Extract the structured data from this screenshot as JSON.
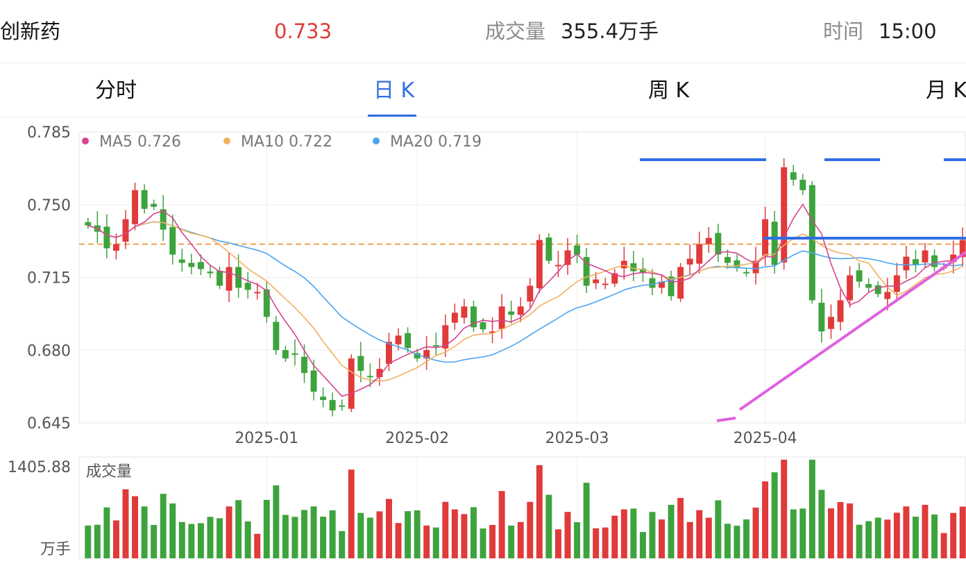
{
  "header": {
    "name": "创新药",
    "price": "0.733",
    "volume_label": "成交量",
    "volume_value": "355.4万手",
    "time_label": "时间",
    "time_value": "15:00"
  },
  "tabs": [
    "分时",
    "日 K",
    "周 K",
    "月 K"
  ],
  "active_tab": 1,
  "colors": {
    "up": "#e03a3a",
    "down": "#3da33d",
    "ma5": "#d6438f",
    "ma10": "#f0b060",
    "ma20": "#4aa3f0",
    "accent": "#2f6de6"
  },
  "chart_data": [
    {
      "type": "candlestick",
      "legend": [
        {
          "name": "MA5",
          "value": "0.726"
        },
        {
          "name": "MA10",
          "value": "0.722"
        },
        {
          "name": "MA20",
          "value": "0.719"
        }
      ],
      "y_ticks": [
        "0.785",
        "0.750",
        "0.715",
        "0.680",
        "0.645"
      ],
      "x_ticks": [
        "2025-01",
        "2025-02",
        "2025-03",
        "2025-04"
      ],
      "ylim": [
        0.645,
        0.785
      ],
      "reference_price": 0.731,
      "closes": [
        0.74,
        0.737,
        0.729,
        0.731,
        0.743,
        0.757,
        0.748,
        0.749,
        0.738,
        0.726,
        0.722,
        0.72,
        0.719,
        0.717,
        0.711,
        0.72,
        0.71,
        0.709,
        0.708,
        0.696,
        0.68,
        0.676,
        0.678,
        0.669,
        0.66,
        0.656,
        0.651,
        0.653,
        0.676,
        0.67,
        0.667,
        0.671,
        0.684,
        0.687,
        0.681,
        0.676,
        0.68,
        0.682,
        0.692,
        0.698,
        0.701,
        0.691,
        0.69,
        0.689,
        0.701,
        0.697,
        0.701,
        0.711,
        0.733,
        0.723,
        0.721,
        0.728,
        0.726,
        0.711,
        0.714,
        0.712,
        0.717,
        0.723,
        0.718,
        0.717,
        0.71,
        0.713,
        0.706,
        0.72,
        0.724,
        0.731,
        0.734,
        0.726,
        0.722,
        0.72,
        0.717,
        0.723,
        0.743,
        0.721,
        0.768,
        0.762,
        0.757,
        0.704,
        0.689,
        0.696,
        0.704,
        0.716,
        0.713,
        0.71,
        0.707,
        0.708,
        0.716,
        0.725,
        0.721,
        0.728,
        0.72,
        0.72,
        0.726,
        0.733
      ],
      "x_range": [
        "2024-12-05",
        "2025-04-30"
      ]
    },
    {
      "type": "bar",
      "title": "成交量",
      "unit": "万手",
      "max_label": "1405.88"
    }
  ]
}
